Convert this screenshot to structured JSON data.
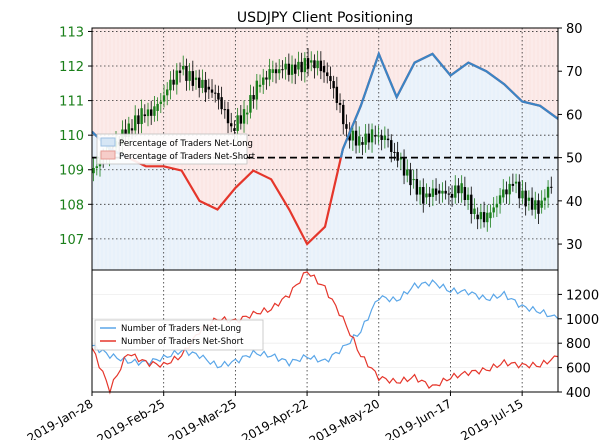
{
  "chart_data": [
    {
      "type": "candlestick",
      "title": "USDJPY Client Positioning",
      "left_axis": {
        "ticks": [
          "107",
          "108",
          "109",
          "110",
          "111",
          "112",
          "113"
        ],
        "range": [
          106.1,
          113.1
        ]
      },
      "right_axis": {
        "ticks": [
          "30",
          "40",
          "50",
          "60",
          "70",
          "80"
        ],
        "range": [
          24,
          80
        ]
      },
      "reference_line": 50,
      "legend": {
        "placement": "left",
        "entries": [
          "Percentage of Traders Net-Long",
          "Percentage of Traders Net-Short"
        ]
      },
      "x_ticks": [
        "2019-Jan-28",
        "2019-Feb-25",
        "2019-Mar-25",
        "2019-Apr-22",
        "2019-May-20",
        "2019-Jun-17",
        "2019-Jul-15"
      ],
      "price_series": {
        "x": [
          "2019-Jan-28",
          "2019-Feb-02",
          "2019-Feb-07",
          "2019-Feb-12",
          "2019-Feb-17",
          "2019-Feb-22",
          "2019-Feb-27",
          "2019-Mar-04",
          "2019-Mar-09",
          "2019-Mar-14",
          "2019-Mar-19",
          "2019-Mar-24",
          "2019-Mar-29",
          "2019-Apr-03",
          "2019-Apr-08",
          "2019-Apr-13",
          "2019-Apr-18",
          "2019-Apr-23",
          "2019-Apr-28",
          "2019-May-03",
          "2019-May-08",
          "2019-May-13",
          "2019-May-18",
          "2019-May-23",
          "2019-May-28",
          "2019-Jun-02",
          "2019-Jun-07",
          "2019-Jun-12",
          "2019-Jun-17",
          "2019-Jun-22",
          "2019-Jun-27",
          "2019-Jul-02",
          "2019-Jul-07",
          "2019-Jul-12",
          "2019-Jul-17",
          "2019-Jul-22",
          "2019-Jul-27"
        ],
        "values": [
          108.9,
          109.4,
          109.8,
          110.2,
          110.6,
          110.7,
          111.3,
          111.9,
          111.6,
          111.4,
          111.1,
          110.2,
          110.6,
          111.4,
          111.8,
          111.9,
          111.9,
          112.1,
          112.0,
          111.4,
          110.1,
          109.8,
          110.0,
          109.9,
          109.3,
          108.7,
          108.2,
          108.4,
          108.3,
          108.5,
          107.7,
          107.6,
          108.2,
          108.6,
          108.1,
          107.9,
          108.6
        ]
      },
      "net_long_pct": {
        "name": "Percentage of Traders Net-Long",
        "x": [
          "2019-Jan-28",
          "2019-Feb-04",
          "2019-Feb-11",
          "2019-Feb-18",
          "2019-Feb-25",
          "2019-Mar-04",
          "2019-Mar-11",
          "2019-Mar-18",
          "2019-Mar-25",
          "2019-Apr-01",
          "2019-Apr-08",
          "2019-Apr-15",
          "2019-Apr-22",
          "2019-Apr-29",
          "2019-May-06",
          "2019-May-13",
          "2019-May-20",
          "2019-May-27",
          "2019-Jun-03",
          "2019-Jun-10",
          "2019-Jun-17",
          "2019-Jun-24",
          "2019-Jul-01",
          "2019-Jul-08",
          "2019-Jul-15",
          "2019-Jul-22",
          "2019-Jul-29"
        ],
        "values": [
          56,
          52,
          50,
          48,
          48,
          47,
          40,
          38,
          43,
          47,
          45,
          38,
          30,
          34,
          52,
          62,
          74,
          64,
          72,
          74,
          69,
          72,
          70,
          67,
          63,
          62,
          59
        ]
      },
      "net_short_pct": {
        "name": "Percentage of Traders Net-Short",
        "x": [
          "2019-Jan-28",
          "2019-Feb-04",
          "2019-Feb-11",
          "2019-Feb-18",
          "2019-Feb-25",
          "2019-Mar-04",
          "2019-Mar-11",
          "2019-Mar-18",
          "2019-Mar-25",
          "2019-Apr-01",
          "2019-Apr-08",
          "2019-Apr-15",
          "2019-Apr-22",
          "2019-Apr-29",
          "2019-May-06",
          "2019-May-13",
          "2019-May-20",
          "2019-May-27",
          "2019-Jun-03",
          "2019-Jun-10",
          "2019-Jun-17",
          "2019-Jun-24",
          "2019-Jul-01",
          "2019-Jul-08",
          "2019-Jul-15",
          "2019-Jul-22",
          "2019-Jul-29"
        ],
        "values": [
          44,
          48,
          50,
          52,
          52,
          53,
          60,
          62,
          57,
          53,
          55,
          62,
          70,
          66,
          48,
          38,
          26,
          36,
          28,
          26,
          31,
          28,
          30,
          33,
          37,
          38,
          41
        ]
      }
    },
    {
      "type": "line",
      "y_ticks": [
        "400",
        "600",
        "800",
        "1000",
        "1200"
      ],
      "ylim": [
        400,
        1400
      ],
      "legend": {
        "placement": "left",
        "entries": [
          "Number of Traders Net-Long",
          "Number of Traders Net-Short"
        ]
      },
      "series": [
        {
          "name": "Number of Traders Net-Long",
          "x": [
            "2019-Jan-28",
            "2019-Feb-04",
            "2019-Feb-11",
            "2019-Feb-18",
            "2019-Feb-25",
            "2019-Mar-04",
            "2019-Mar-11",
            "2019-Mar-18",
            "2019-Mar-25",
            "2019-Apr-01",
            "2019-Apr-08",
            "2019-Apr-15",
            "2019-Apr-22",
            "2019-Apr-29",
            "2019-May-06",
            "2019-May-13",
            "2019-May-20",
            "2019-May-27",
            "2019-Jun-03",
            "2019-Jun-10",
            "2019-Jun-17",
            "2019-Jun-24",
            "2019-Jul-01",
            "2019-Jul-08",
            "2019-Jul-15",
            "2019-Jul-22",
            "2019-Jul-29"
          ],
          "values": [
            780,
            700,
            650,
            640,
            680,
            740,
            700,
            610,
            650,
            720,
            700,
            640,
            690,
            650,
            760,
            900,
            1180,
            1150,
            1270,
            1300,
            1230,
            1220,
            1160,
            1200,
            1100,
            1060,
            1000
          ]
        },
        {
          "name": "Number of Traders Net-Short",
          "x": [
            "2019-Jan-28",
            "2019-Feb-04",
            "2019-Feb-11",
            "2019-Feb-18",
            "2019-Feb-25",
            "2019-Mar-04",
            "2019-Mar-11",
            "2019-Mar-18",
            "2019-Mar-25",
            "2019-Apr-01",
            "2019-Apr-08",
            "2019-Apr-15",
            "2019-Apr-22",
            "2019-Apr-29",
            "2019-May-06",
            "2019-May-13",
            "2019-May-20",
            "2019-May-27",
            "2019-Jun-03",
            "2019-Jun-10",
            "2019-Jun-17",
            "2019-Jun-24",
            "2019-Jul-01",
            "2019-Jul-08",
            "2019-Jul-15",
            "2019-Jul-22",
            "2019-Jul-29"
          ],
          "values": [
            760,
            420,
            720,
            640,
            620,
            700,
            900,
            1000,
            980,
            1040,
            1080,
            1200,
            1390,
            1250,
            1000,
            700,
            520,
            480,
            520,
            440,
            520,
            560,
            580,
            640,
            620,
            620,
            690
          ]
        }
      ]
    }
  ]
}
